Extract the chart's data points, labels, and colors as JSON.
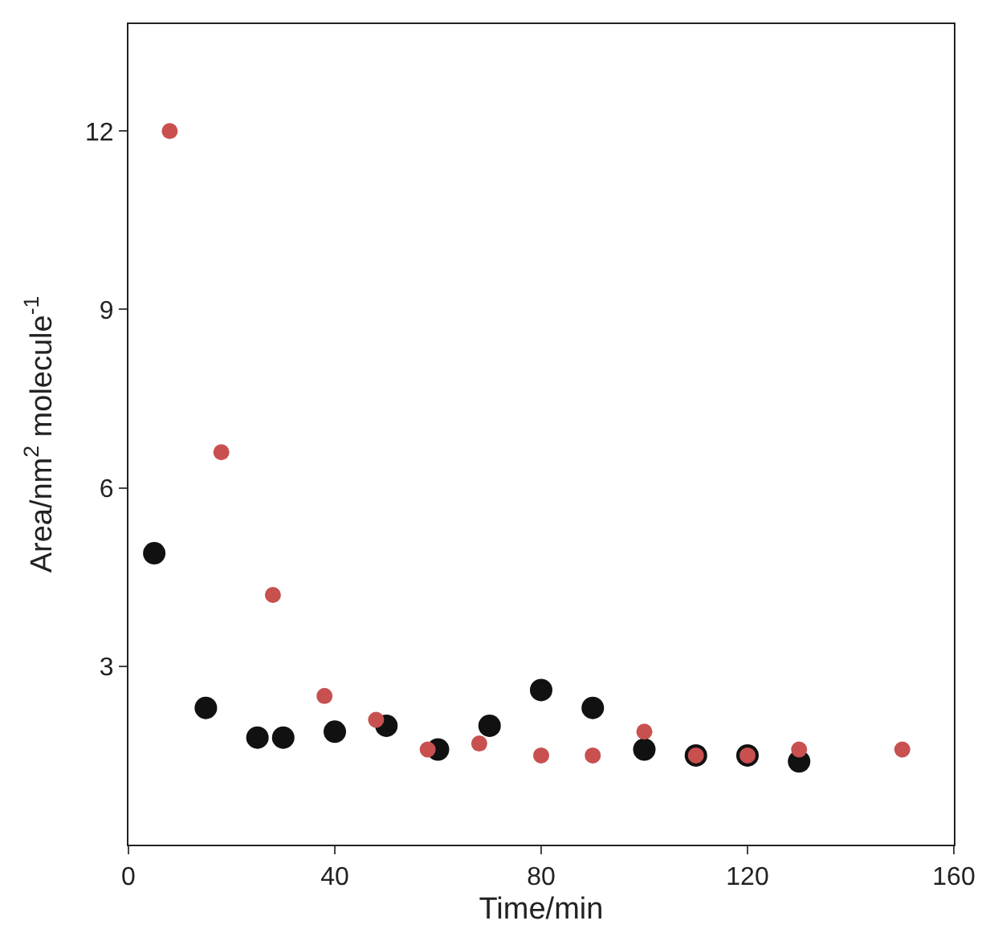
{
  "chart_data": {
    "type": "scatter",
    "xlabel": "Time/min",
    "ylabel": "Area/nm$^{2}$ molecule$^{-1}$",
    "xlim": [
      0,
      160
    ],
    "xticks": [
      0,
      40,
      80,
      120,
      160
    ],
    "ylim": [
      0,
      13.8
    ],
    "yticks": [
      3,
      6,
      9,
      12
    ],
    "marker": "circle",
    "series": [
      {
        "color": "#111111",
        "x": [
          5,
          15,
          25,
          30,
          40,
          50,
          60,
          70,
          80,
          90,
          100,
          110,
          120,
          130
        ],
        "values": [
          4.9,
          2.3,
          1.8,
          1.8,
          1.9,
          2.0,
          1.6,
          2.0,
          2.6,
          2.3,
          1.6,
          1.5,
          1.5,
          1.4
        ]
      },
      {
        "color": "#c8504f",
        "x": [
          8,
          18,
          28,
          38,
          48,
          58,
          68,
          80,
          90,
          100,
          110,
          120,
          130,
          150
        ],
        "values": [
          12.0,
          6.6,
          4.2,
          2.5,
          2.1,
          1.6,
          1.7,
          1.5,
          1.5,
          1.9,
          1.5,
          1.5,
          1.6,
          1.6
        ]
      }
    ]
  }
}
